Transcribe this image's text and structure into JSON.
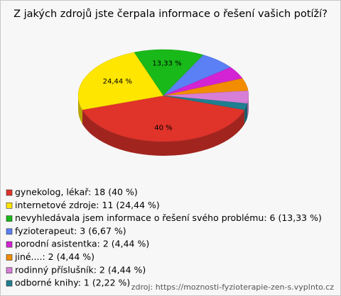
{
  "chart_data": {
    "type": "pie",
    "title": "Z jakých zdrojů jste čerpala informace o řešení vašich potíží?",
    "categories": [
      "gynekolog, lékař: 18 (40 %)",
      "internetové zdroje: 11 (24,44 %)",
      "nevyhledávala jsem informace o řešení svého problému: 6 (13,33 %)",
      "fyzioterapeut: 3 (6,67 %)",
      "porodní asistentka: 2 (4,44 %)",
      "jiné....: 2 (4,44 %)",
      "rodinný příslušník: 2 (4,44 %)",
      "odborné knihy: 1 (2,22 %)"
    ],
    "values": [
      40,
      24.44,
      13.33,
      6.67,
      4.44,
      4.44,
      4.44,
      2.22
    ],
    "value_labels": [
      "40 %",
      "24,44 %",
      "13,33 %",
      null,
      null,
      null,
      null,
      null
    ],
    "colors": [
      "#e0332a",
      "#ffe600",
      "#19b919",
      "#5b7ff5",
      "#d323d3",
      "#f28c00",
      "#d77ed7",
      "#1f7f90"
    ],
    "source": "zdroj: https://moznosti-fyzioterapie-zen-s.vyplnto.cz"
  }
}
